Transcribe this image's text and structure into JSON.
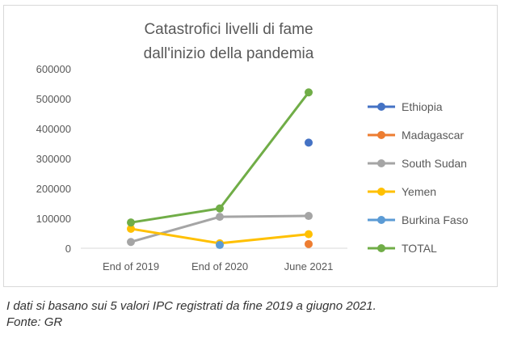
{
  "chart_data": {
    "type": "line",
    "title_line1": "Catastrofici livelli di fame",
    "title_line2": "dall'inizio della pandemia",
    "categories": [
      "End of 2019",
      "End of 2020",
      "June 2021"
    ],
    "y_ticks": [
      "0",
      "100000",
      "200000",
      "300000",
      "400000",
      "500000",
      "600000"
    ],
    "ylim": [
      0,
      600000
    ],
    "grid": false,
    "legend_position": "right",
    "series": [
      {
        "name": "Ethiopia",
        "color": "#4472c4",
        "values": [
          null,
          null,
          353000
        ]
      },
      {
        "name": "Madagascar",
        "color": "#ed7d31",
        "values": [
          null,
          null,
          14000
        ]
      },
      {
        "name": "South Sudan",
        "color": "#a5a5a5",
        "values": [
          21000,
          105000,
          108000
        ]
      },
      {
        "name": "Yemen",
        "color": "#ffc000",
        "values": [
          65000,
          16500,
          47000
        ]
      },
      {
        "name": "Burkina Faso",
        "color": "#5b9bd5",
        "values": [
          null,
          11000,
          null
        ]
      },
      {
        "name": "TOTAL",
        "color": "#70ad47",
        "values": [
          86000,
          133000,
          521000
        ]
      }
    ]
  },
  "caption": {
    "line1": "I dati si basano sui 5 valori IPC registrati da fine 2019 a giugno 2021.",
    "line2": "Fonte: GR"
  }
}
